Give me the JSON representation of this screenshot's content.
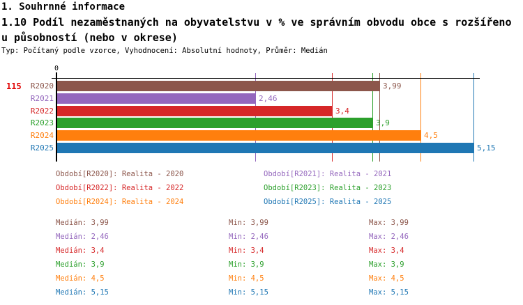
{
  "header": {
    "section_title": "1. Souhrnné informace",
    "indicator_title_line1": "1.10 Podíl nezaměstnaných na obyvatelstvu v % ve správním obvodu obce s rozšířeno",
    "indicator_title_line2": "u působností (nebo v okrese)",
    "meta": "Typ: Počítaný podle vzorce, Vyhodnocení: Absolutní hodnoty, Průměr: Medián"
  },
  "chart_data": {
    "type": "bar",
    "orientation": "horizontal",
    "title": "1.10 Podíl nezaměstnaných na obyvatelstvu v % ve správním obvodu obce s rozšířenou působností (nebo v okrese)",
    "row_number": "115",
    "origin_tick_label": "0",
    "categories": [
      "R2020",
      "R2021",
      "R2022",
      "R2023",
      "R2024",
      "R2025"
    ],
    "values": [
      3.99,
      2.46,
      3.4,
      3.9,
      4.5,
      5.15
    ],
    "value_labels": [
      "3,99",
      "2,46",
      "3,4",
      "3,9",
      "4,5",
      "5,15"
    ],
    "bar_colors": [
      "#8C564B",
      "#9467BD",
      "#D62728",
      "#2CA02C",
      "#FF7F0E",
      "#1F77B4"
    ],
    "xlim": [
      0,
      5.45
    ],
    "grid": "colored value line per series",
    "legend_position": "below",
    "legend": [
      {
        "label": "Období[R2020]: Realita - 2020",
        "color": "#8C564B"
      },
      {
        "label": "Období[R2021]: Realita - 2021",
        "color": "#9467BD"
      },
      {
        "label": "Období[R2022]: Realita - 2022",
        "color": "#D62728"
      },
      {
        "label": "Období[R2023]: Realita - 2023",
        "color": "#2CA02C"
      },
      {
        "label": "Období[R2024]: Realita - 2024",
        "color": "#FF7F0E"
      },
      {
        "label": "Období[R2025]: Realita - 2025",
        "color": "#1F77B4"
      }
    ]
  },
  "stats": {
    "rows": [
      {
        "color": "#8C564B",
        "median": "Medián: 3,99",
        "min": "Min: 3,99",
        "max": "Max: 3,99"
      },
      {
        "color": "#9467BD",
        "median": "Medián: 2,46",
        "min": "Min: 2,46",
        "max": "Max: 2,46"
      },
      {
        "color": "#D62728",
        "median": "Medián: 3,4",
        "min": "Min: 3,4",
        "max": "Max: 3,4"
      },
      {
        "color": "#2CA02C",
        "median": "Medián: 3,9",
        "min": "Min: 3,9",
        "max": "Max: 3,9"
      },
      {
        "color": "#FF7F0E",
        "median": "Medián: 4,5",
        "min": "Min: 4,5",
        "max": "Max: 4,5"
      },
      {
        "color": "#1F77B4",
        "median": "Medián: 5,15",
        "min": "Min: 5,15",
        "max": "Max: 5,15"
      }
    ]
  },
  "colors": {
    "row_number_red": "#E00000",
    "axis_black": "#000000",
    "background": "#FFFFFF"
  }
}
